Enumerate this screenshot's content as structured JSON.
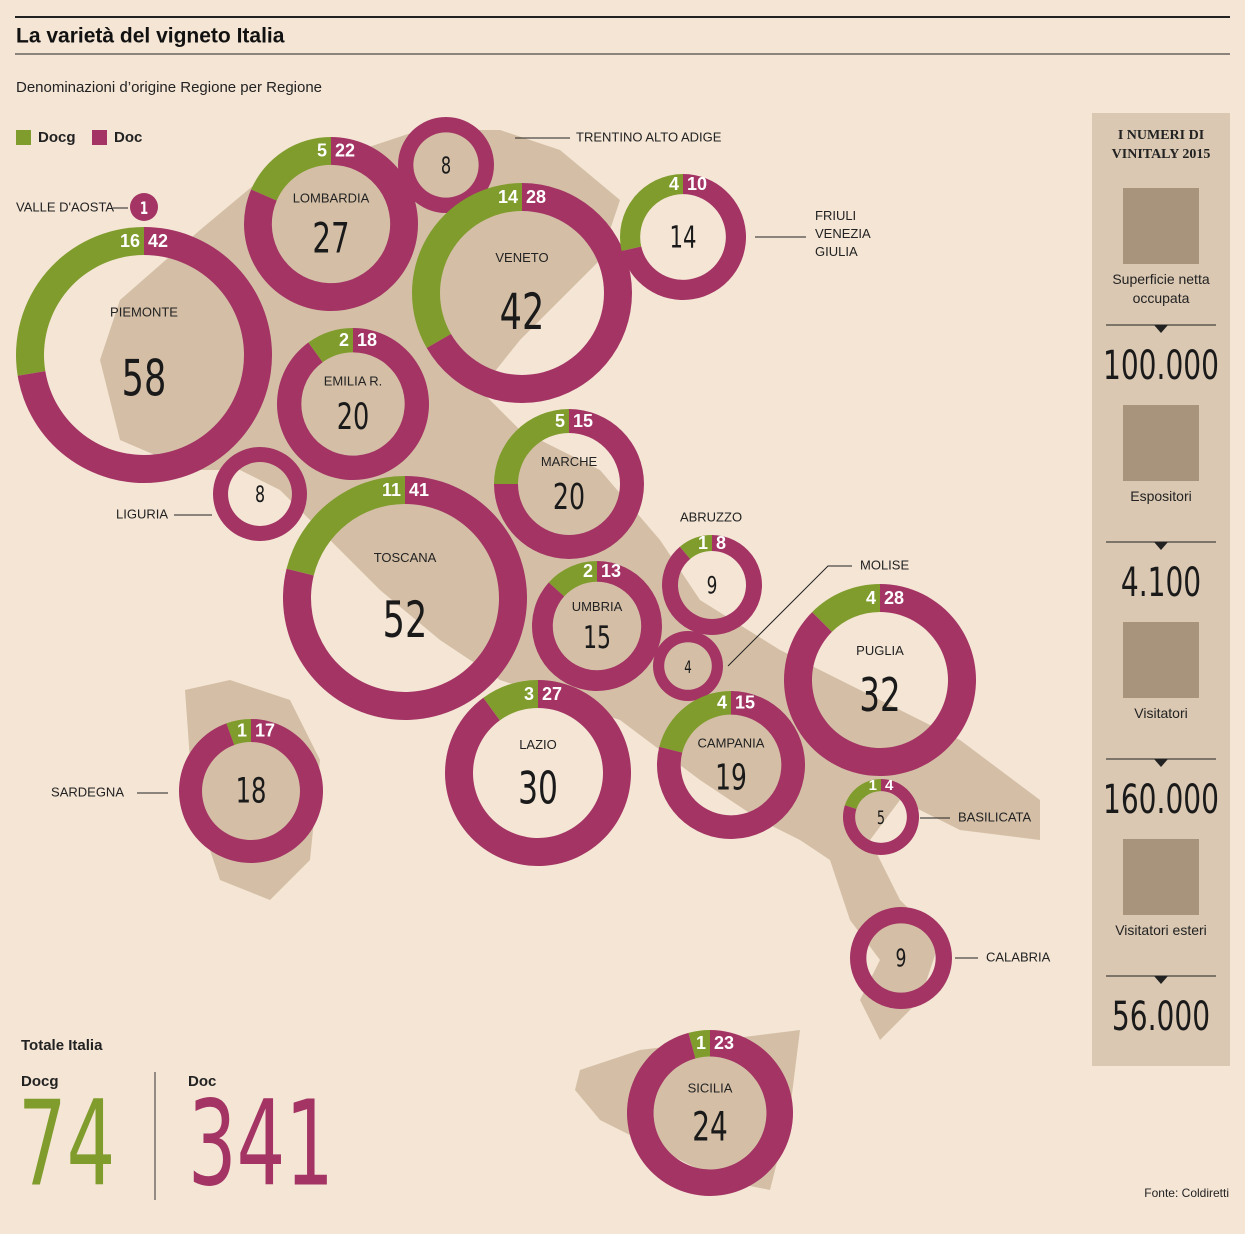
{
  "chart_data": {
    "type": "donut",
    "title": "La varietà del vigneto Italia",
    "subtitle": "Denominazioni d’origine Regione per Regione",
    "source": "Fonte: Coldiretti",
    "categories": [
      "PIEMONTE",
      "VALLE D'AOSTA",
      "LOMBARDIA",
      "TRENTINO ALTO ADIGE",
      "VENETO",
      "FRIULI VENEZIA GIULIA",
      "EMILIA R.",
      "LIGURIA",
      "MARCHE",
      "TOSCANA",
      "ABRUZZO",
      "UMBRIA",
      "MOLISE",
      "PUGLIA",
      "SARDEGNA",
      "LAZIO",
      "CAMPANIA",
      "BASILICATA",
      "CALABRIA",
      "SICILIA"
    ],
    "series": [
      {
        "name": "Docg",
        "color": "#7f9c2c",
        "values": [
          16,
          0,
          5,
          0,
          14,
          4,
          2,
          0,
          5,
          11,
          1,
          2,
          0,
          4,
          1,
          3,
          4,
          1,
          0,
          1
        ],
        "value_labels": [
          "16",
          null,
          "5",
          null,
          "14",
          "4",
          "2",
          null,
          "5",
          "11",
          "1",
          "2",
          null,
          "4",
          "1",
          "3",
          "4",
          "1",
          null,
          "1"
        ]
      },
      {
        "name": "Doc",
        "color": "#a33464",
        "values": [
          42,
          1,
          22,
          8,
          28,
          10,
          18,
          8,
          15,
          41,
          8,
          13,
          4,
          28,
          17,
          27,
          15,
          4,
          9,
          23
        ],
        "value_labels": [
          "42",
          null,
          "22",
          null,
          "28",
          "10",
          "18",
          null,
          "15",
          "41",
          "8",
          "13",
          null,
          "28",
          "17",
          "27",
          "15",
          "4",
          null,
          "23"
        ]
      }
    ],
    "totals": [
      58,
      1,
      27,
      8,
      42,
      14,
      20,
      8,
      20,
      52,
      9,
      15,
      4,
      32,
      18,
      30,
      19,
      5,
      9,
      24
    ],
    "italy": {
      "title": "Totale Italia",
      "docg": 74,
      "doc": 341
    }
  },
  "sidebar": {
    "title": "I NUMERI DI VINITALY 2015",
    "items": [
      {
        "label": "Superficie netta occupata",
        "value": "100.000"
      },
      {
        "label": "Espositori",
        "value": "4.100"
      },
      {
        "label": "Visitatori",
        "value": "160.000"
      },
      {
        "label": "Visitatori esteri",
        "value": "56.000"
      }
    ]
  }
}
